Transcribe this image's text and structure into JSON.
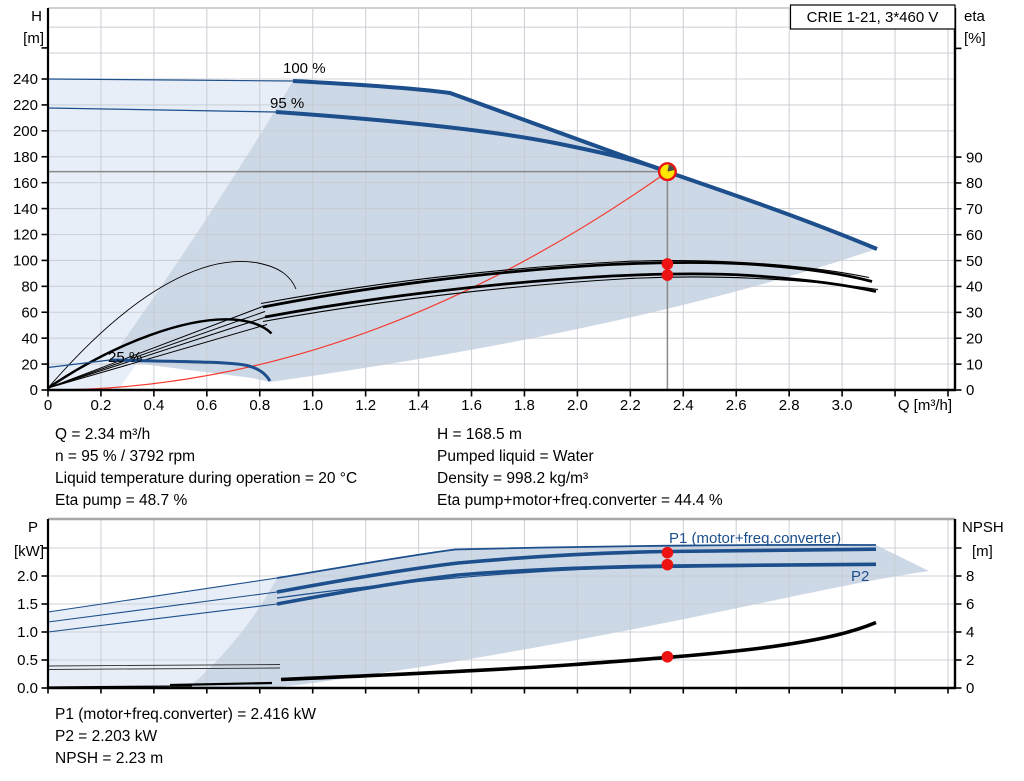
{
  "title_box": {
    "label": "CRIE 1-21, 3*460 V"
  },
  "top_chart": {
    "y_left": {
      "name": "H",
      "unit": "[m]"
    },
    "y_right": {
      "name": "eta",
      "unit": "[%]"
    },
    "x_axis": {
      "label": "Q [m³/h]"
    },
    "labels": {
      "p100": "100 %",
      "p95": "95 %",
      "p25": "25 %"
    }
  },
  "bottom_chart": {
    "y_left": {
      "name": "P",
      "unit": "[kW]"
    },
    "y_right": {
      "name": "NPSH",
      "unit": "[m]"
    },
    "labels": {
      "p1": "P1 (motor+freq.converter)",
      "p2": "P2"
    }
  },
  "ticks": {
    "top_x": [
      {
        "v": 0,
        "t": "0"
      },
      {
        "v": 0.2,
        "t": "0.2"
      },
      {
        "v": 0.4,
        "t": "0.4"
      },
      {
        "v": 0.6,
        "t": "0.6"
      },
      {
        "v": 0.8,
        "t": "0.8"
      },
      {
        "v": 1.0,
        "t": "1.0"
      },
      {
        "v": 1.2,
        "t": "1.2"
      },
      {
        "v": 1.4,
        "t": "1.4"
      },
      {
        "v": 1.6,
        "t": "1.6"
      },
      {
        "v": 1.8,
        "t": "1.8"
      },
      {
        "v": 2.0,
        "t": "2.0"
      },
      {
        "v": 2.2,
        "t": "2.2"
      },
      {
        "v": 2.4,
        "t": "2.4"
      },
      {
        "v": 2.6,
        "t": "2.6"
      },
      {
        "v": 2.8,
        "t": "2.8"
      },
      {
        "v": 3.0,
        "t": "3.0"
      },
      {
        "v": 3.2,
        "t": ""
      },
      {
        "v": 3.4,
        "t": ""
      }
    ],
    "top_h": [
      {
        "v": 0,
        "t": "0"
      },
      {
        "v": 20,
        "t": "20"
      },
      {
        "v": 40,
        "t": "40"
      },
      {
        "v": 60,
        "t": "60"
      },
      {
        "v": 80,
        "t": "80"
      },
      {
        "v": 100,
        "t": "100"
      },
      {
        "v": 120,
        "t": "120"
      },
      {
        "v": 140,
        "t": "140"
      },
      {
        "v": 160,
        "t": "160"
      },
      {
        "v": 180,
        "t": "180"
      },
      {
        "v": 200,
        "t": "200"
      },
      {
        "v": 220,
        "t": "220"
      },
      {
        "v": 240,
        "t": "240"
      },
      {
        "v": 264,
        "t": ""
      }
    ],
    "top_eta": [
      {
        "v": 0,
        "t": "0"
      },
      {
        "v": 10,
        "t": "10"
      },
      {
        "v": 20,
        "t": "20"
      },
      {
        "v": 30,
        "t": "30"
      },
      {
        "v": 40,
        "t": "40"
      },
      {
        "v": 50,
        "t": "50"
      },
      {
        "v": 60,
        "t": "60"
      },
      {
        "v": 70,
        "t": "70"
      },
      {
        "v": 80,
        "t": "80"
      },
      {
        "v": 90,
        "t": "90"
      },
      {
        "v": 132,
        "t": ""
      }
    ],
    "bot_p": [
      {
        "v": 0,
        "t": "0.0"
      },
      {
        "v": 0.5,
        "t": "0.5"
      },
      {
        "v": 1,
        "t": "1.0"
      },
      {
        "v": 1.5,
        "t": "1.5"
      },
      {
        "v": 2,
        "t": "2.0"
      },
      {
        "v": 2.5,
        "t": ""
      }
    ],
    "bot_npsh": [
      {
        "v": 0,
        "t": "0"
      },
      {
        "v": 2,
        "t": "2"
      },
      {
        "v": 4,
        "t": "4"
      },
      {
        "v": 6,
        "t": "6"
      },
      {
        "v": 8,
        "t": "8"
      },
      {
        "v": 10,
        "t": ""
      }
    ]
  },
  "info_top": {
    "lines_left": [
      "Q = 2.34 m³/h",
      "n = 95 % / 3792 rpm",
      "Liquid temperature during operation = 20 °C",
      "Eta pump = 48.7 %"
    ],
    "lines_right": [
      "H = 168.5 m",
      "Pumped liquid = Water",
      "Density = 998.2 kg/m³",
      "Eta pump+motor+freq.converter = 44.4 %"
    ]
  },
  "info_bottom": {
    "lines": [
      "P1 (motor+freq.converter) = 2.416 kW",
      "P2 = 2.203 kW",
      "NPSH = 2.23 m"
    ]
  },
  "colors": {
    "curve_blue": "#1c4f8c",
    "fill_light": "#e8eef7",
    "fill_dark": "#cdd8e6",
    "red": "#ee1313",
    "marker_yellow": "#ffe600"
  },
  "chart_data": [
    {
      "type": "line",
      "title": "CRIE 1-21, 3*460 V",
      "xlabel": "Q [m³/h]",
      "x_range": [
        0,
        3.43
      ],
      "left_axis": {
        "label": "H [m]",
        "range": [
          0,
          295
        ],
        "ticks_step": 20,
        "ticks_max": 240
      },
      "right_axis": {
        "label": "eta [%]",
        "range": [
          0,
          113
        ],
        "ticks_step": 10,
        "ticks_max": 90
      },
      "grid": true,
      "series": [
        {
          "name": "H 100%",
          "axis": "H",
          "points": [
            [
              0,
              240
            ],
            [
              0.93,
              238.5
            ],
            [
              1.52,
              229
            ],
            [
              2.34,
              168.5
            ],
            [
              3.13,
              109
            ]
          ]
        },
        {
          "name": "H 95%",
          "axis": "H",
          "points": [
            [
              0,
              217.5
            ],
            [
              0.86,
              214.5
            ],
            [
              1.91,
              190.5
            ],
            [
              2.34,
              168.5
            ],
            [
              3.13,
              108
            ]
          ]
        },
        {
          "name": "H 25%",
          "axis": "H",
          "points": [
            [
              0,
              17.4
            ],
            [
              0.23,
              23.2
            ],
            [
              0.75,
              18.9
            ],
            [
              0.84,
              7
            ]
          ]
        },
        {
          "name": "Eta pump",
          "axis": "eta",
          "points": [
            [
              0,
              0
            ],
            [
              0.81,
              32.1
            ],
            [
              2.1,
              48.2
            ],
            [
              2.34,
              48.7
            ],
            [
              2.5,
              49.2
            ],
            [
              3.12,
              41.9
            ]
          ]
        },
        {
          "name": "Eta pump+motor+freq.converter",
          "axis": "eta",
          "points": [
            [
              0,
              0
            ],
            [
              0.82,
              28.2
            ],
            [
              2.1,
              44
            ],
            [
              2.34,
              44.4
            ],
            [
              2.5,
              44.9
            ],
            [
              3.13,
              38
            ]
          ]
        },
        {
          "name": "System curve",
          "axis": "H",
          "points": [
            [
              0,
              0
            ],
            [
              1,
              30.8
            ],
            [
              1.66,
              84.8
            ],
            [
              2,
              123
            ],
            [
              2.34,
              168.5
            ]
          ]
        }
      ],
      "operating_point": {
        "Q": 2.34,
        "H": 168.5,
        "eta_pump": 48.7,
        "eta_total": 44.4,
        "n_percent": 95,
        "n_rpm": 3792
      }
    },
    {
      "type": "line",
      "xlabel": "Q [m³/h]",
      "x_range": [
        0,
        3.43
      ],
      "left_axis": {
        "label": "P [kW]",
        "range": [
          0,
          3.02
        ],
        "ticks_step": 0.5,
        "ticks_max": 2.0
      },
      "right_axis": {
        "label": "NPSH [m]",
        "range": [
          0,
          12.1
        ],
        "ticks_step": 2,
        "ticks_max": 8
      },
      "grid": true,
      "series": [
        {
          "name": "P1 100%",
          "axis": "P",
          "points": [
            [
              0,
              1.36
            ],
            [
              0.87,
              1.96
            ],
            [
              1.54,
              2.47
            ],
            [
              3.13,
              2.55
            ]
          ]
        },
        {
          "name": "P1 (motor+freq.converter)",
          "axis": "P",
          "points": [
            [
              0,
              1.18
            ],
            [
              0.87,
              1.71
            ],
            [
              1.55,
              2.23
            ],
            [
              2.34,
              2.416
            ],
            [
              3.13,
              2.48
            ]
          ]
        },
        {
          "name": "P2",
          "axis": "P",
          "points": [
            [
              0,
              1.0
            ],
            [
              0.87,
              1.5
            ],
            [
              1.55,
              2.02
            ],
            [
              2.34,
              2.203
            ],
            [
              3.13,
              2.21
            ]
          ]
        },
        {
          "name": "NPSH",
          "axis": "NPSH",
          "points": [
            [
              0,
              0.07
            ],
            [
              0.85,
              0.61
            ],
            [
              1.78,
              1.43
            ],
            [
              2.34,
              2.23
            ],
            [
              3.12,
              4.68
            ]
          ]
        }
      ],
      "operating_point": {
        "Q": 2.34,
        "P1": 2.416,
        "P2": 2.203,
        "NPSH": 2.23
      }
    }
  ]
}
